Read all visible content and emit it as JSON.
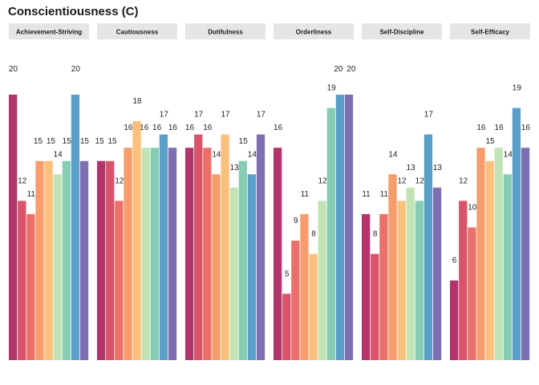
{
  "chart_data": {
    "type": "bar",
    "title": "Conscientiousness (C)",
    "facets": [
      "Achievement-Striving",
      "Cautiousness",
      "Dutifulness",
      "Orderliness",
      "Self-Discipline",
      "Self-Efficacy"
    ],
    "ylim": [
      0,
      20
    ],
    "xlabel": "",
    "ylabel": "",
    "grid": false,
    "palette": [
      "#b2346a",
      "#d8546a",
      "#e9716a",
      "#f79d6c",
      "#fbc07b",
      "#c2e4b4",
      "#86cdb3",
      "#5a9fc9",
      "#7d6fb2"
    ],
    "series_per_facet": [
      [
        20,
        12,
        11,
        15,
        15,
        14,
        15,
        20,
        15
      ],
      [
        15,
        15,
        12,
        16,
        18,
        16,
        16,
        17,
        16
      ],
      [
        16,
        17,
        16,
        14,
        17,
        13,
        15,
        14,
        17
      ],
      [
        16,
        5,
        9,
        11,
        8,
        12,
        19,
        20,
        20
      ],
      [
        11,
        8,
        11,
        14,
        12,
        13,
        12,
        17,
        13
      ],
      [
        6,
        12,
        10,
        16,
        15,
        16,
        14,
        19,
        16
      ]
    ]
  }
}
